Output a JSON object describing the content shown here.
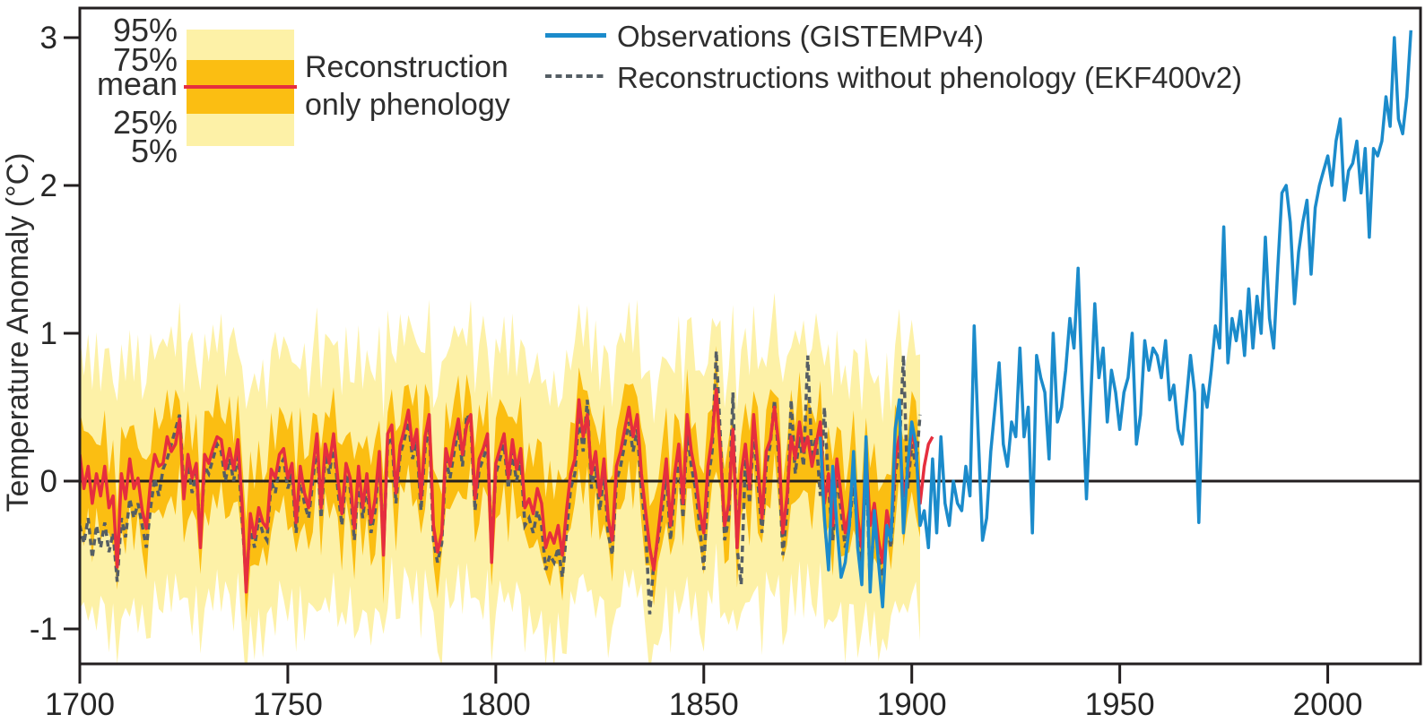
{
  "colors": {
    "background": "#ffffff",
    "axis": "#231f20",
    "band_light": "#FDF1A7",
    "band_gold": "#FBBE12",
    "reconstruction_mean": "#E62E3E",
    "ekf400v2": "#555E64",
    "observations": "#1B8BCB"
  },
  "legend_left": {
    "levels": [
      "95%",
      "75%",
      "mean",
      "25%",
      "5%"
    ],
    "title_line1": "Reconstruction",
    "title_line2": "only phenology"
  },
  "legend_right": {
    "items": [
      {
        "label": "Observations (GISTEMPv4)",
        "style": "solid-blue"
      },
      {
        "label": "Reconstructions without phenology (EKF400v2)",
        "style": "dashed-gray"
      }
    ]
  },
  "chart_data": {
    "type": "line",
    "title": "",
    "xlabel": "",
    "ylabel": "Temperature Anomaly (°C)",
    "xlim": [
      1700,
      2022.3
    ],
    "ylim": [
      -1.236,
      3.2
    ],
    "grid": false,
    "zero_reference_line": 0,
    "x_ticks": {
      "values": [
        1700,
        1750,
        1800,
        1850,
        1900,
        1950,
        2000
      ],
      "labels": [
        "1700",
        "1750",
        "1800",
        "1850",
        "1900",
        "1950",
        "2000"
      ]
    },
    "y_ticks": {
      "values": [
        3,
        2,
        1,
        0,
        -1
      ],
      "labels": [
        "3",
        "2",
        "1",
        "0",
        "-1"
      ]
    },
    "series": [
      {
        "name": "reconstruction_mean",
        "legend": "Reconstruction only phenology (mean)",
        "start_year": 1700,
        "values": [
          0.18,
          -0.05,
          0.1,
          -0.15,
          0.05,
          -0.1,
          0.1,
          -0.18,
          -0.1,
          -0.58,
          0.05,
          -0.12,
          0.15,
          -0.05,
          0.02,
          -0.2,
          -0.32,
          0.0,
          0.18,
          0.1,
          0.12,
          0.3,
          0.2,
          0.25,
          0.42,
          -0.12,
          0.18,
          0.02,
          0.12,
          -0.45,
          0.18,
          0.12,
          0.22,
          0.3,
          0.28,
          0.08,
          0.22,
          0.08,
          0.28,
          -0.15,
          -0.75,
          -0.22,
          -0.38,
          -0.18,
          -0.28,
          -0.32,
          0.08,
          0.02,
          0.18,
          0.22,
          0.02,
          0.12,
          -0.28,
          0.1,
          -0.08,
          -0.18,
          0.08,
          0.32,
          -0.18,
          0.25,
          0.12,
          0.32,
          0.02,
          -0.22,
          0.12,
          0.02,
          -0.32,
          0.1,
          -0.18,
          0.05,
          -0.28,
          -0.12,
          0.2,
          -0.5,
          0.32,
          0.38,
          -0.08,
          0.24,
          0.35,
          0.48,
          0.22,
          0.35,
          -0.12,
          0.3,
          0.45,
          -0.3,
          -0.48,
          -0.35,
          0.22,
          0.1,
          0.28,
          0.42,
          0.18,
          0.38,
          0.45,
          -0.12,
          0.15,
          0.22,
          0.32,
          -0.55,
          0.12,
          0.22,
          0.32,
          0.02,
          0.28,
          0.08,
          0.22,
          -0.18,
          -0.12,
          -0.22,
          -0.05,
          -0.15,
          -0.45,
          -0.35,
          -0.42,
          -0.3,
          -0.5,
          -0.2,
          0.05,
          0.15,
          0.55,
          0.3,
          0.45,
          0.05,
          0.2,
          -0.1,
          0.15,
          -0.25,
          -0.4,
          0.1,
          0.2,
          0.35,
          0.5,
          0.3,
          0.45,
          0.05,
          -0.2,
          -0.45,
          -0.6,
          -0.35,
          -0.1,
          0.15,
          -0.3,
          0.05,
          0.25,
          -0.15,
          0.45,
          0.2,
          0.05,
          -0.2,
          -0.35,
          0.1,
          0.3,
          0.62,
          0.2,
          -0.3,
          -0.15,
          0.35,
          -0.45,
          0.05,
          0.25,
          -0.05,
          0.45,
          0.1,
          -0.25,
          0.2,
          0.28,
          0.5,
          0.25,
          -0.35,
          -0.1,
          0.3,
          0.15,
          0.4,
          0.2,
          0.3,
          0.1,
          0.25,
          0.4,
          -0.15,
          0.05,
          -0.3,
          0.15,
          -0.1,
          -0.35,
          -0.2,
          0.1,
          -0.25,
          -0.45,
          0.2,
          -0.3,
          -0.15,
          -0.4,
          -0.55,
          -0.2,
          -0.35,
          0.15,
          0.3,
          -0.1,
          0.05,
          0.35,
          0.2,
          -0.15,
          0.1,
          0.25,
          0.3
        ]
      },
      {
        "name": "ekf400v2",
        "legend": "Reconstructions without phenology (EKF400v2)",
        "start_year": 1700,
        "values": [
          -0.3,
          -0.42,
          -0.25,
          -0.52,
          -0.3,
          -0.45,
          -0.28,
          -0.48,
          -0.35,
          -0.68,
          -0.25,
          -0.38,
          -0.12,
          -0.25,
          -0.15,
          -0.3,
          -0.45,
          -0.18,
          0.02,
          -0.1,
          0.08,
          0.15,
          0.25,
          0.35,
          0.45,
          -0.05,
          0.12,
          -0.08,
          0.05,
          -0.38,
          0.1,
          0.05,
          0.15,
          0.25,
          0.2,
          0.0,
          0.15,
          0.0,
          0.2,
          -0.25,
          -0.68,
          -0.3,
          -0.45,
          -0.25,
          -0.35,
          -0.4,
          0.0,
          -0.08,
          0.1,
          0.15,
          -0.05,
          0.05,
          -0.35,
          0.02,
          -0.15,
          -0.25,
          0.0,
          0.25,
          -0.25,
          0.18,
          0.05,
          0.25,
          -0.05,
          -0.3,
          0.05,
          -0.05,
          -0.4,
          0.02,
          -0.25,
          -0.02,
          -0.35,
          -0.2,
          0.15,
          -0.45,
          0.25,
          0.3,
          -0.15,
          0.18,
          0.28,
          0.4,
          0.15,
          0.28,
          -0.2,
          0.22,
          0.38,
          -0.4,
          -0.55,
          -0.42,
          0.15,
          0.02,
          0.2,
          0.35,
          0.1,
          0.45,
          0.4,
          -0.2,
          0.08,
          0.15,
          0.25,
          -0.45,
          0.05,
          0.15,
          0.25,
          -0.05,
          0.2,
          0.0,
          0.15,
          -0.3,
          -0.25,
          -0.35,
          -0.2,
          -0.3,
          -0.6,
          -0.5,
          -0.55,
          -0.45,
          -0.65,
          -0.35,
          -0.05,
          0.05,
          0.45,
          0.2,
          0.55,
          -0.05,
          0.1,
          -0.2,
          0.05,
          -0.35,
          -0.5,
          0.0,
          0.1,
          0.25,
          0.4,
          0.2,
          0.35,
          -0.05,
          -0.3,
          -0.9,
          -0.55,
          -0.4,
          -0.2,
          0.05,
          -0.4,
          -0.05,
          0.15,
          -0.25,
          0.35,
          0.1,
          -0.05,
          -0.3,
          -0.6,
          0.0,
          0.2,
          0.88,
          0.3,
          -0.4,
          -0.25,
          0.6,
          -0.45,
          -0.7,
          0.15,
          -0.15,
          0.35,
          0.0,
          -0.35,
          0.1,
          0.25,
          0.55,
          0.15,
          -0.5,
          -0.2,
          0.55,
          0.05,
          0.3,
          0.1,
          0.85,
          0.15,
          0.3,
          -0.1,
          0.5,
          -0.05,
          -0.4,
          0.05,
          -0.2,
          -0.45,
          -0.3,
          0.0,
          -0.35,
          -0.55,
          0.1,
          -0.7,
          -0.25,
          -0.5,
          -0.65,
          -0.3,
          -0.45,
          0.05,
          0.2,
          0.85,
          -0.05,
          0.25,
          0.1,
          0.45
        ]
      },
      {
        "name": "observations",
        "legend": "Observations (GISTEMPv4)",
        "start_year": 1878,
        "values": [
          0.3,
          -0.25,
          -0.6,
          0.1,
          -0.3,
          -0.65,
          -0.55,
          -0.3,
          0.2,
          -0.45,
          -0.7,
          0.3,
          -0.75,
          -0.2,
          -0.55,
          -0.85,
          -0.3,
          -0.4,
          0.35,
          0.55,
          -0.35,
          0.1,
          0.4,
          0.25,
          -0.3,
          -0.2,
          -0.45,
          0.15,
          -0.35,
          0.3,
          -0.15,
          -0.3,
          0.0,
          -0.15,
          -0.2,
          0.1,
          -0.1,
          1.05,
          0.3,
          -0.4,
          -0.25,
          0.2,
          0.5,
          0.8,
          0.25,
          0.1,
          0.4,
          0.3,
          0.9,
          0.3,
          0.5,
          -0.35,
          0.85,
          0.7,
          0.6,
          0.15,
          1.0,
          0.4,
          0.5,
          0.75,
          1.1,
          0.9,
          1.44,
          0.6,
          -0.12,
          0.55,
          1.2,
          0.7,
          0.9,
          0.4,
          0.75,
          0.6,
          0.35,
          0.6,
          0.7,
          1.0,
          0.25,
          0.45,
          0.95,
          0.75,
          0.9,
          0.85,
          0.7,
          0.95,
          0.55,
          0.65,
          0.35,
          0.25,
          0.55,
          0.85,
          0.6,
          -0.28,
          0.65,
          0.5,
          0.75,
          1.05,
          0.9,
          1.72,
          0.8,
          1.1,
          0.95,
          1.15,
          0.85,
          1.3,
          0.9,
          1.25,
          1.0,
          1.65,
          1.1,
          0.9,
          1.45,
          1.95,
          2.0,
          1.75,
          1.2,
          1.55,
          1.75,
          1.9,
          1.4,
          1.85,
          2.0,
          2.1,
          2.2,
          2.0,
          2.3,
          2.45,
          1.9,
          2.1,
          2.15,
          2.3,
          1.95,
          2.25,
          1.65,
          2.25,
          2.2,
          2.3,
          2.6,
          2.4,
          3.0,
          2.45,
          2.35,
          2.6,
          3.05
        ]
      }
    ],
    "bands": {
      "name": "reconstruction_percentiles",
      "basis": "reconstruction_mean",
      "start_year": 1700,
      "end_year": 1902,
      "note": "approximate percentile envelope around the phenology reconstruction mean: p = scale*mean + offset + jitter (cycled)",
      "p95": {
        "scale": 0.55,
        "offset": 0.8,
        "jitter": [
          0.1,
          -0.06,
          0.14,
          -0.1,
          0.18,
          -0.14,
          0.04,
          0.2,
          -0.08,
          0.06
        ]
      },
      "p75": {
        "scale": 0.8,
        "offset": 0.3,
        "jitter": [
          0.03,
          0.08,
          -0.05,
          0.12,
          -0.09,
          0.02,
          0.1,
          -0.11,
          0.06,
          -0.03
        ]
      },
      "p25": {
        "scale": 0.8,
        "offset": -0.3,
        "jitter": [
          -0.05,
          -0.1,
          0.04,
          -0.13,
          0.08,
          -0.02,
          -0.11,
          0.09,
          -0.06,
          0.03
        ]
      },
      "p5": {
        "scale": 0.55,
        "offset": -0.84,
        "jitter": [
          -0.12,
          0.05,
          -0.16,
          0.08,
          -0.2,
          0.12,
          -0.05,
          -0.22,
          0.07,
          -0.08
        ]
      }
    }
  }
}
